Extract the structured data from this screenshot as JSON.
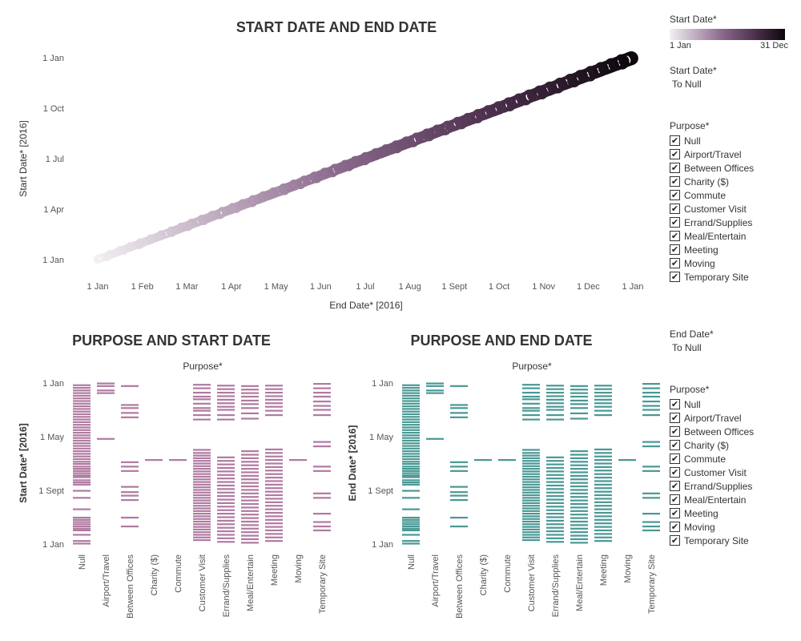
{
  "scatter": {
    "title": "START DATE AND END DATE",
    "xlabel": "End Date* [2016]",
    "ylabel": "Start Date* [2016]",
    "x_ticks": [
      "1 Jan",
      "1 Feb",
      "1 Mar",
      "1 Apr",
      "1 May",
      "1 Jun",
      "1 Jul",
      "1 Aug",
      "1 Sept",
      "1 Oct",
      "1 Nov",
      "1 Dec",
      "1 Jan"
    ],
    "y_ticks": [
      "1 Jan",
      "1 Apr",
      "1 Jul",
      "1 Oct",
      "1 Jan"
    ]
  },
  "purpose_start": {
    "title": "PURPOSE AND START DATE",
    "top_label": "Purpose*",
    "ylabel": "Start Date* [2016]",
    "y_ticks": [
      "1 Jan",
      "1 May",
      "1 Sept",
      "1 Jan"
    ],
    "color": "#b07aa1"
  },
  "purpose_end": {
    "title": "PURPOSE AND END DATE",
    "top_label": "Purpose*",
    "ylabel": "End Date* [2016]",
    "y_ticks": [
      "1 Jan",
      "1 May",
      "1 Sept",
      "1 Jan"
    ],
    "color": "#499894"
  },
  "legend_start_color": {
    "title": "Start Date*",
    "min_label": "1 Jan",
    "max_label": "31 Dec"
  },
  "filter_start": {
    "title": "Start Date*",
    "value": "To Null"
  },
  "filter_end": {
    "title": "End Date*",
    "value": "To Null"
  },
  "purpose_filter_1": {
    "title": "Purpose*",
    "items": [
      "Null",
      "Airport/Travel",
      "Between Offices",
      "Charity ($)",
      "Commute",
      "Customer Visit",
      "Errand/Supplies",
      "Meal/Entertain",
      "Meeting",
      "Moving",
      "Temporary Site"
    ]
  },
  "purpose_filter_2": {
    "title": "Purpose*",
    "items": [
      "Null",
      "Airport/Travel",
      "Between Offices",
      "Charity ($)",
      "Commute",
      "Customer Visit",
      "Errand/Supplies",
      "Meal/Entertain",
      "Meeting",
      "Moving",
      "Temporary Site"
    ]
  },
  "checkbox_glyph": "✔",
  "chart_data": [
    {
      "type": "scatter",
      "title": "START DATE AND END DATE",
      "xlabel": "End Date* [2016]",
      "ylabel": "Start Date* [2016]",
      "x_range": [
        "2016-01-01",
        "2017-01-01"
      ],
      "y_range": [
        "2016-01-01",
        "2017-01-01"
      ],
      "color_scale": {
        "field": "Start Date*",
        "min_color": "#f3f0f3",
        "max_color": "#0c070c",
        "min_label": "1 Jan",
        "max_label": "31 Dec"
      },
      "points": [
        {
          "x": "2016-01-01",
          "y": "2016-01-01"
        },
        {
          "x": "2016-02-01",
          "y": "2016-02-01"
        },
        {
          "x": "2016-03-01",
          "y": "2016-03-01"
        },
        {
          "x": "2016-04-01",
          "y": "2016-04-01"
        },
        {
          "x": "2016-05-01",
          "y": "2016-05-01"
        },
        {
          "x": "2016-06-01",
          "y": "2016-06-01"
        },
        {
          "x": "2016-07-01",
          "y": "2016-07-01"
        },
        {
          "x": "2016-08-01",
          "y": "2016-08-01"
        },
        {
          "x": "2016-09-01",
          "y": "2016-09-01"
        },
        {
          "x": "2016-10-01",
          "y": "2016-10-01"
        },
        {
          "x": "2016-11-01",
          "y": "2016-11-01"
        },
        {
          "x": "2016-12-01",
          "y": "2016-12-01"
        },
        {
          "x": "2016-12-31",
          "y": "2016-12-31"
        }
      ]
    },
    {
      "type": "strip",
      "title": "PURPOSE AND START DATE",
      "field": "Start Date",
      "y_range": [
        "2016-01-01",
        "2017-01-01"
      ],
      "categories": [
        "Null",
        "Airport/Travel",
        "Between Offices",
        "Charity ($)",
        "Commute",
        "Customer Visit",
        "Errand/Supplies",
        "Meal/Entertain",
        "Meeting",
        "Moving",
        "Temporary Site"
      ],
      "dates": [
        [
          "2016-01-02",
          "2016-01-08",
          "2016-01-22",
          "2016-02-01",
          "2016-02-05",
          "2016-02-10",
          "2016-02-15",
          "2016-02-20",
          "2016-02-25",
          "2016-03-01",
          "2016-03-20",
          "2016-04-15",
          "2016-05-01",
          "2016-05-15",
          "2016-05-20",
          "2016-05-25",
          "2016-06-01",
          "2016-06-05",
          "2016-06-10",
          "2016-06-15",
          "2016-06-20",
          "2016-06-25",
          "2016-07-01",
          "2016-07-06",
          "2016-07-12",
          "2016-07-18",
          "2016-07-24",
          "2016-07-30",
          "2016-08-05",
          "2016-08-11",
          "2016-08-17",
          "2016-08-23",
          "2016-08-29",
          "2016-09-04",
          "2016-09-10",
          "2016-09-16",
          "2016-09-22",
          "2016-09-28",
          "2016-10-04",
          "2016-10-10",
          "2016-10-16",
          "2016-10-22",
          "2016-10-28",
          "2016-11-03",
          "2016-11-09",
          "2016-11-15",
          "2016-11-21",
          "2016-11-27",
          "2016-12-03",
          "2016-12-09",
          "2016-12-15",
          "2016-12-21",
          "2016-12-27"
        ],
        [
          "2016-08-27",
          "2016-12-09",
          "2016-12-15",
          "2016-12-25",
          "2016-12-31"
        ],
        [
          "2016-02-10",
          "2016-03-01",
          "2016-04-10",
          "2016-04-20",
          "2016-04-28",
          "2016-05-10",
          "2016-06-15",
          "2016-06-25",
          "2016-07-05",
          "2016-10-15",
          "2016-10-25",
          "2016-11-05",
          "2016-11-12",
          "2016-12-25"
        ],
        [
          "2016-07-10"
        ],
        [
          "2016-07-10"
        ],
        [
          "2016-01-10",
          "2016-01-16",
          "2016-01-22",
          "2016-01-28",
          "2016-02-03",
          "2016-02-09",
          "2016-02-15",
          "2016-02-21",
          "2016-02-27",
          "2016-03-04",
          "2016-03-10",
          "2016-03-16",
          "2016-03-22",
          "2016-03-28",
          "2016-04-03",
          "2016-04-09",
          "2016-04-15",
          "2016-04-21",
          "2016-04-27",
          "2016-05-03",
          "2016-05-09",
          "2016-05-15",
          "2016-05-21",
          "2016-05-27",
          "2016-06-02",
          "2016-06-08",
          "2016-06-14",
          "2016-06-20",
          "2016-06-26",
          "2016-07-02",
          "2016-07-08",
          "2016-07-14",
          "2016-07-20",
          "2016-07-26",
          "2016-08-02",
          "2016-10-10",
          "2016-10-20",
          "2016-10-30",
          "2016-11-05",
          "2016-11-15",
          "2016-11-25",
          "2016-12-01",
          "2016-12-10",
          "2016-12-20",
          "2016-12-28"
        ],
        [
          "2016-01-06",
          "2016-01-14",
          "2016-01-22",
          "2016-01-30",
          "2016-02-07",
          "2016-02-15",
          "2016-02-23",
          "2016-03-02",
          "2016-03-10",
          "2016-03-18",
          "2016-03-26",
          "2016-04-03",
          "2016-04-11",
          "2016-04-19",
          "2016-04-27",
          "2016-05-05",
          "2016-05-13",
          "2016-05-21",
          "2016-05-29",
          "2016-06-06",
          "2016-06-14",
          "2016-06-22",
          "2016-06-30",
          "2016-07-08",
          "2016-07-16",
          "2016-10-10",
          "2016-10-20",
          "2016-11-01",
          "2016-11-08",
          "2016-11-16",
          "2016-11-24",
          "2016-12-02",
          "2016-12-10",
          "2016-12-18",
          "2016-12-26"
        ],
        [
          "2016-01-04",
          "2016-01-12",
          "2016-01-20",
          "2016-01-28",
          "2016-02-05",
          "2016-02-13",
          "2016-02-21",
          "2016-02-29",
          "2016-03-08",
          "2016-03-16",
          "2016-03-24",
          "2016-04-01",
          "2016-04-09",
          "2016-04-17",
          "2016-04-25",
          "2016-05-03",
          "2016-05-11",
          "2016-05-19",
          "2016-05-27",
          "2016-06-04",
          "2016-06-12",
          "2016-06-20",
          "2016-06-28",
          "2016-07-06",
          "2016-07-14",
          "2016-07-22",
          "2016-07-30",
          "2016-10-12",
          "2016-10-24",
          "2016-11-05",
          "2016-11-14",
          "2016-11-22",
          "2016-12-01",
          "2016-12-09",
          "2016-12-17",
          "2016-12-25"
        ],
        [
          "2016-01-08",
          "2016-01-16",
          "2016-01-24",
          "2016-02-01",
          "2016-02-09",
          "2016-02-17",
          "2016-02-25",
          "2016-03-04",
          "2016-03-12",
          "2016-03-20",
          "2016-03-28",
          "2016-04-05",
          "2016-04-13",
          "2016-04-21",
          "2016-04-29",
          "2016-05-07",
          "2016-05-15",
          "2016-05-23",
          "2016-05-31",
          "2016-06-08",
          "2016-06-16",
          "2016-06-24",
          "2016-07-02",
          "2016-07-10",
          "2016-07-18",
          "2016-07-26",
          "2016-08-03",
          "2016-10-20",
          "2016-10-30",
          "2016-11-08",
          "2016-11-16",
          "2016-11-24",
          "2016-12-02",
          "2016-12-10",
          "2016-12-18",
          "2016-12-26"
        ],
        [
          "2016-07-10"
        ],
        [
          "2016-02-01",
          "2016-02-10",
          "2016-02-20",
          "2016-03-10",
          "2016-04-15",
          "2016-04-25",
          "2016-06-15",
          "2016-06-25",
          "2016-08-10",
          "2016-08-20",
          "2016-10-20",
          "2016-11-01",
          "2016-11-10",
          "2016-11-20",
          "2016-12-01",
          "2016-12-10",
          "2016-12-20",
          "2016-12-30"
        ]
      ]
    },
    {
      "type": "strip",
      "title": "PURPOSE AND END DATE",
      "field": "End Date",
      "y_range": [
        "2016-01-01",
        "2017-01-01"
      ],
      "categories": [
        "Null",
        "Airport/Travel",
        "Between Offices",
        "Charity ($)",
        "Commute",
        "Customer Visit",
        "Errand/Supplies",
        "Meal/Entertain",
        "Meeting",
        "Moving",
        "Temporary Site"
      ],
      "dates": "same as PURPOSE AND START DATE"
    }
  ]
}
